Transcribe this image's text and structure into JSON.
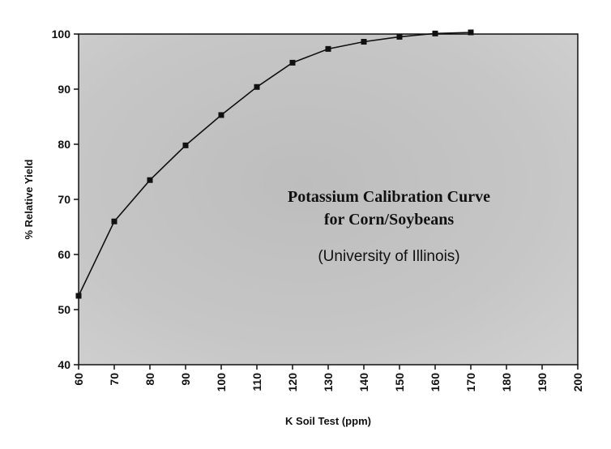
{
  "chart_data": {
    "type": "line",
    "title_lines": [
      "Potassium Calibration Curve",
      "for Corn/Soybeans"
    ],
    "subtitle": "(University of Illinois)",
    "xlabel": "K Soil Test (ppm)",
    "ylabel": "% Relative Yield",
    "xlim": [
      60,
      200
    ],
    "ylim": [
      40,
      100
    ],
    "xticks": [
      60,
      70,
      80,
      90,
      100,
      110,
      120,
      130,
      140,
      150,
      160,
      170,
      180,
      190,
      200
    ],
    "yticks": [
      40,
      50,
      60,
      70,
      80,
      90,
      100
    ],
    "grid": false,
    "legend": "none",
    "series": [
      {
        "x": [
          60,
          70,
          80,
          90,
          100,
          110,
          120,
          130,
          140,
          150,
          160,
          170
        ],
        "y": [
          52.5,
          66,
          73.5,
          79.8,
          85.3,
          90.4,
          94.8,
          97.3,
          98.6,
          99.5,
          100.1,
          100.3
        ]
      }
    ],
    "colors": {
      "plot_background": "#c4c4c4",
      "line": "#111111",
      "marker": "#111111"
    }
  }
}
